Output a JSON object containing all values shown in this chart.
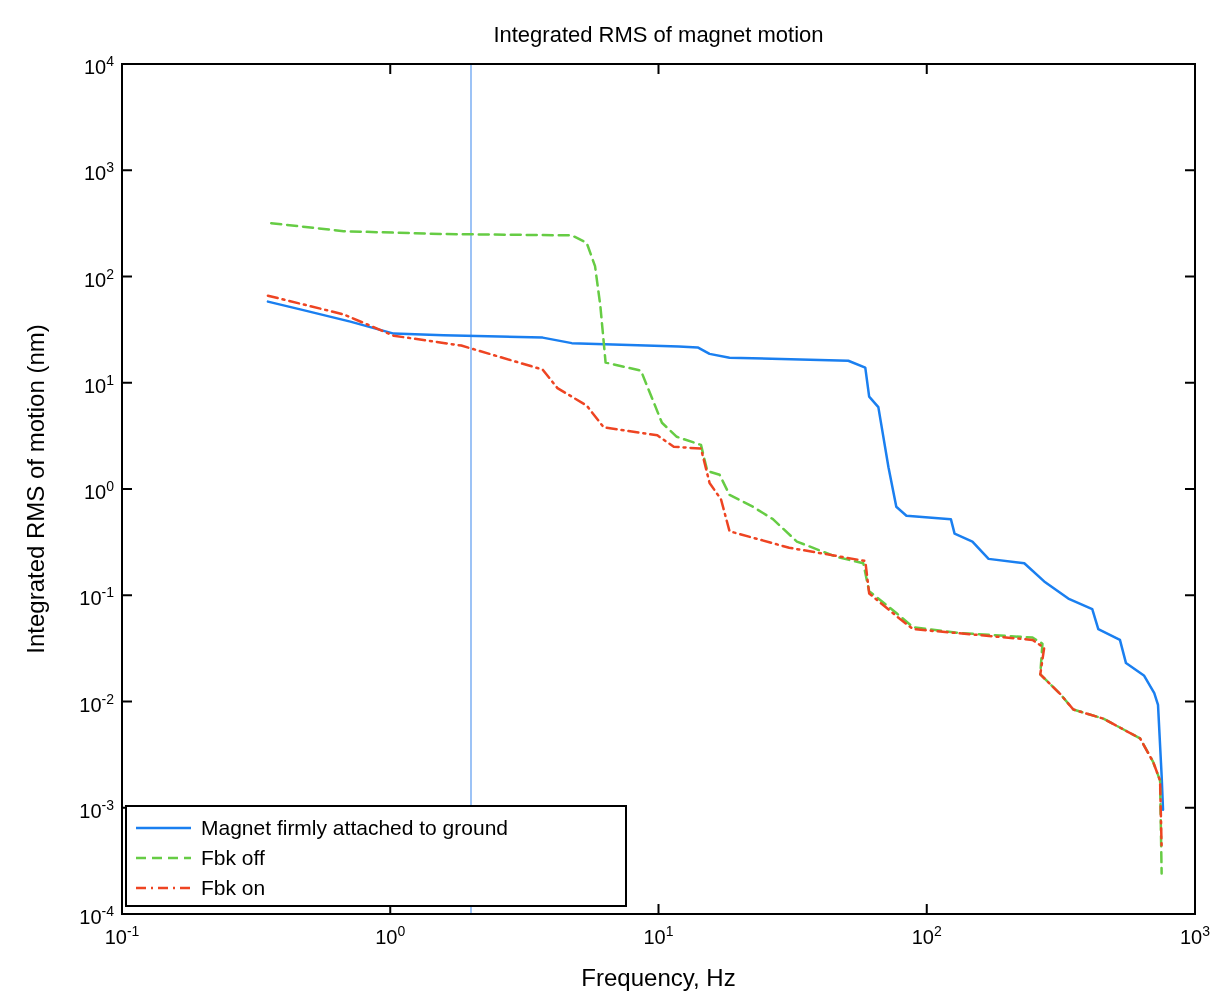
{
  "chart_data": {
    "type": "line",
    "title": "Integrated RMS of magnet motion",
    "xlabel": "Frequency, Hz",
    "ylabel": "Integrated RMS of motion (nm)",
    "log": "xy",
    "grid": false,
    "legend": "bottom left",
    "xlim": [
      0.1,
      1000
    ],
    "ylim": [
      0.0001,
      10000
    ],
    "xticks": [
      {
        "value": 0.1,
        "label": "10$^{-1}$"
      },
      {
        "value": 1,
        "label": "10$^{0}$"
      },
      {
        "value": 10,
        "label": "10$^{1}$"
      },
      {
        "value": 100,
        "label": "10$^{2}$"
      },
      {
        "value": 1000,
        "label": "10$^{3}$"
      }
    ],
    "yticks": [
      {
        "value": 0.0001,
        "label": "10$^{-4}$"
      },
      {
        "value": 0.001,
        "label": "10$^{-3}$"
      },
      {
        "value": 0.01,
        "label": "10$^{-2}$"
      },
      {
        "value": 0.1,
        "label": "10$^{-1}$"
      },
      {
        "value": 1,
        "label": "10$^{0}$"
      },
      {
        "value": 10,
        "label": "10$^{1}$"
      },
      {
        "value": 100,
        "label": "10$^{2}$"
      },
      {
        "value": 1000,
        "label": "10$^{3}$"
      },
      {
        "value": 10000,
        "label": "10$^{4}$"
      }
    ],
    "ref_lines": [
      {
        "axis": "x",
        "value": 2,
        "label": null,
        "color": "#5b9bf0",
        "line_style": "solid"
      }
    ],
    "series": [
      {
        "name": "Magnet firmly attached to ground",
        "color": "#1a7ff0",
        "line_style": "solid",
        "x": [
          0.35,
          0.47,
          0.71,
          1.03,
          1.58,
          3.7,
          4.75,
          11.9,
          14,
          15.5,
          18.4,
          51,
          59,
          61,
          66,
          72,
          77,
          84,
          123,
          127,
          148,
          170,
          231,
          274,
          337,
          414,
          436,
          525,
          553,
          645,
          705,
          728,
          751,
          760
        ],
        "values": [
          58,
          48.5,
          37.6,
          29,
          28,
          26.6,
          23.6,
          21.9,
          21.5,
          18.7,
          17.2,
          16.1,
          13.9,
          7.4,
          5.9,
          1.6,
          0.68,
          0.56,
          0.52,
          0.38,
          0.32,
          0.22,
          0.2,
          0.135,
          0.093,
          0.074,
          0.048,
          0.038,
          0.023,
          0.0176,
          0.012,
          0.0093,
          0.002,
          0.00096
        ]
      },
      {
        "name": "Fbk off",
        "color": "#66cc44",
        "line_style": "dashed",
        "x": [
          0.36,
          0.67,
          1.57,
          4.75,
          5.4,
          5.8,
          6.07,
          6.35,
          8.6,
          10.3,
          11.7,
          14.4,
          15.2,
          16.9,
          18.4,
          22.5,
          26.7,
          32.8,
          46,
          58,
          61,
          77,
          89,
          134,
          248,
          270,
          265,
          315,
          352,
          455,
          624,
          698,
          741,
          751
        ],
        "values": [
          317,
          267,
          251,
          244,
          207,
          125,
          53,
          15.5,
          13,
          4.2,
          3.1,
          2.6,
          1.48,
          1.36,
          0.88,
          0.68,
          0.52,
          0.32,
          0.23,
          0.2,
          0.109,
          0.068,
          0.05,
          0.044,
          0.04,
          0.035,
          0.018,
          0.0117,
          0.0084,
          0.0069,
          0.0045,
          0.0027,
          0.0018,
          0.00024
        ]
      },
      {
        "name": "Fbk on",
        "color": "#ee4422",
        "line_style": "dashdot",
        "x": [
          0.35,
          0.67,
          1.03,
          1.84,
          3.7,
          4.2,
          5.4,
          6.25,
          9.9,
          11.4,
          14.4,
          15.5,
          17.1,
          18.4,
          30.7,
          59,
          61,
          80,
          89,
          248,
          274,
          265,
          315,
          352,
          455,
          624,
          698,
          741,
          751
        ],
        "values": [
          66,
          44,
          27.7,
          22.4,
          13.3,
          8.9,
          6.1,
          3.8,
          3.2,
          2.5,
          2.4,
          1.14,
          0.8,
          0.4,
          0.28,
          0.21,
          0.104,
          0.059,
          0.048,
          0.038,
          0.032,
          0.018,
          0.0117,
          0.0084,
          0.0069,
          0.0045,
          0.0027,
          0.0018,
          0.00042
        ]
      }
    ]
  }
}
